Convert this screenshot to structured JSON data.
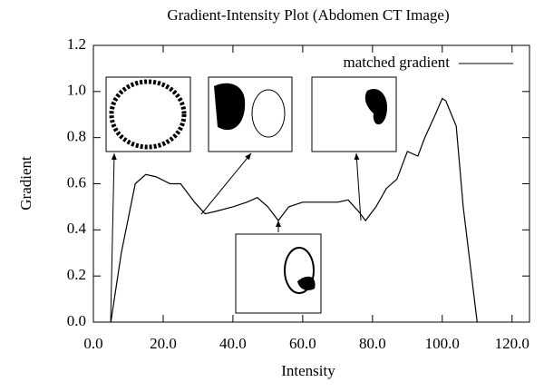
{
  "chart_data": {
    "type": "line",
    "title": "Gradient-Intensity Plot (Abdomen CT Image)",
    "x_label": "Intensity",
    "y_label": "Gradient",
    "x": [
      5,
      8,
      12,
      15,
      18,
      22,
      25,
      29,
      32,
      35,
      40,
      44,
      47,
      50,
      53,
      56,
      60,
      65,
      70,
      73,
      76,
      78,
      81,
      84,
      87,
      90,
      93,
      95,
      98,
      100,
      101,
      104,
      106,
      110
    ],
    "series": [
      {
        "name": "matched gradient",
        "color": "#000000",
        "values": [
          0,
          0.3,
          0.6,
          0.64,
          0.63,
          0.6,
          0.6,
          0.52,
          0.47,
          0.48,
          0.5,
          0.52,
          0.54,
          0.5,
          0.44,
          0.5,
          0.52,
          0.52,
          0.52,
          0.53,
          0.48,
          0.44,
          0.5,
          0.58,
          0.62,
          0.74,
          0.72,
          0.8,
          0.9,
          0.97,
          0.96,
          0.85,
          0.5,
          0
        ]
      }
    ],
    "xlim": [
      0,
      125
    ],
    "ylim": [
      0,
      1.2
    ],
    "xticks": [
      {
        "value": 0,
        "label": "0.0"
      },
      {
        "value": 20,
        "label": "20.0"
      },
      {
        "value": 40,
        "label": "40.0"
      },
      {
        "value": 60,
        "label": "60.0"
      },
      {
        "value": 80,
        "label": "80.0"
      },
      {
        "value": 100,
        "label": "100.0"
      },
      {
        "value": 120,
        "label": "120.0"
      }
    ],
    "yticks": [
      {
        "value": 0,
        "label": "0.0"
      },
      {
        "value": 0.2,
        "label": "0.2"
      },
      {
        "value": 0.4,
        "label": "0.4"
      },
      {
        "value": 0.6,
        "label": "0.6"
      },
      {
        "value": 0.8,
        "label": "0.8"
      },
      {
        "value": 1,
        "label": "1.0"
      },
      {
        "value": 1.2,
        "label": "1.2"
      }
    ],
    "legend": "top-right",
    "grid": false
  }
}
